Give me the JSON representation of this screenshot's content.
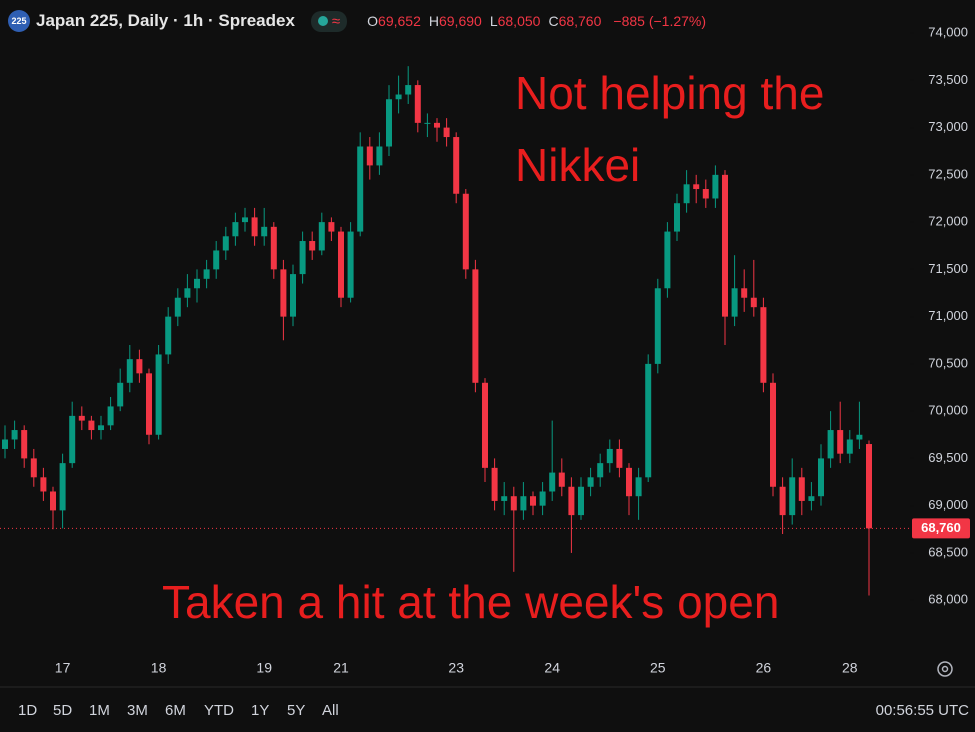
{
  "header": {
    "badge": "225",
    "symbol": "Japan 225, Daily · 1h · Spreadex",
    "status_icon": "≈",
    "ohlc": [
      {
        "key": "O",
        "value": "69,652"
      },
      {
        "key": "H",
        "value": "69,690"
      },
      {
        "key": "L",
        "value": "68,050"
      },
      {
        "key": "C",
        "value": "68,760"
      }
    ],
    "change": "−885 (−1.27%)"
  },
  "chart_data": {
    "type": "candlestick",
    "annotations": [
      [
        "Not helping the",
        "Nikkei"
      ],
      [
        "Taken a hit at the week's open"
      ]
    ],
    "categories": [
      null,
      null,
      null,
      null,
      null,
      null,
      "17",
      null,
      null,
      null,
      null,
      null,
      null,
      null,
      null,
      null,
      "18",
      null,
      null,
      null,
      null,
      null,
      null,
      null,
      null,
      null,
      null,
      "19",
      null,
      null,
      null,
      null,
      null,
      null,
      null,
      "21",
      null,
      null,
      null,
      null,
      null,
      null,
      null,
      null,
      null,
      null,
      null,
      "23",
      null,
      null,
      null,
      null,
      null,
      null,
      null,
      null,
      null,
      "24",
      null,
      null,
      null,
      null,
      null,
      null,
      null,
      null,
      null,
      null,
      "25",
      null,
      null,
      null,
      null,
      null,
      null,
      null,
      null,
      null,
      null,
      "26",
      null,
      null,
      null,
      null,
      null,
      null,
      null,
      null,
      "28",
      null,
      null
    ],
    "open": [
      69600,
      69700,
      69800,
      69500,
      69300,
      69150,
      68950,
      69450,
      69950,
      69900,
      69800,
      69850,
      70050,
      70300,
      70550,
      70400,
      69750,
      70600,
      71000,
      71200,
      71300,
      71400,
      71500,
      71700,
      71850,
      72000,
      72050,
      71850,
      71950,
      71500,
      71000,
      71450,
      71800,
      71700,
      72000,
      71900,
      71200,
      71900,
      72800,
      72600,
      72800,
      73300,
      73350,
      73450,
      73050,
      73050,
      73000,
      72900,
      72300,
      71500,
      70300,
      69400,
      69050,
      69100,
      68950,
      69100,
      69000,
      69150,
      69350,
      69200,
      68900,
      69200,
      69300,
      69450,
      69600,
      69400,
      69100,
      69300,
      70500,
      71300,
      71900,
      72200,
      72400,
      72350,
      72250,
      72500,
      71000,
      71300,
      71200,
      71100,
      70300,
      69200,
      68900,
      69300,
      69050,
      69100,
      69500,
      69800,
      69550,
      69700,
      69652
    ],
    "high": [
      69850,
      69900,
      69850,
      69600,
      69400,
      69200,
      69550,
      70100,
      70050,
      69950,
      69950,
      70150,
      70450,
      70700,
      70650,
      70450,
      70700,
      71100,
      71300,
      71450,
      71500,
      71600,
      71800,
      71950,
      72100,
      72150,
      72150,
      72150,
      72000,
      71600,
      71550,
      71900,
      71900,
      72100,
      72050,
      71950,
      72000,
      72950,
      72900,
      72950,
      73450,
      73550,
      73650,
      73500,
      73150,
      73100,
      73100,
      72950,
      72350,
      71600,
      70350,
      69500,
      69250,
      69200,
      69250,
      69150,
      69250,
      69900,
      69500,
      69300,
      69300,
      69400,
      69550,
      69700,
      69700,
      69450,
      69400,
      70600,
      71400,
      72000,
      72300,
      72550,
      72500,
      72450,
      72600,
      72550,
      71650,
      71500,
      71600,
      71200,
      70400,
      69300,
      69500,
      69400,
      69250,
      69650,
      70000,
      70100,
      69800,
      70100,
      69690
    ],
    "low": [
      69500,
      69600,
      69400,
      69200,
      69050,
      68750,
      68760,
      69400,
      69800,
      69700,
      69700,
      69800,
      70000,
      70200,
      70300,
      69650,
      69700,
      70500,
      70900,
      71100,
      71150,
      71300,
      71400,
      71600,
      71750,
      71900,
      71750,
      71750,
      71400,
      70750,
      70900,
      71350,
      71600,
      71650,
      71800,
      71100,
      71150,
      71850,
      72450,
      72500,
      72700,
      73150,
      73250,
      72950,
      72900,
      72850,
      72800,
      72200,
      71400,
      70200,
      69250,
      68950,
      68900,
      68300,
      68850,
      68900,
      68900,
      69050,
      69100,
      68500,
      68850,
      69100,
      69200,
      69350,
      69300,
      68900,
      68850,
      69250,
      70400,
      71200,
      71800,
      72100,
      72200,
      72150,
      72150,
      70700,
      70900,
      71050,
      71000,
      70200,
      69100,
      68700,
      68800,
      68900,
      68950,
      69000,
      69400,
      69450,
      69450,
      69600,
      68050
    ],
    "close": [
      69700,
      69800,
      69500,
      69300,
      69150,
      68950,
      69450,
      69950,
      69900,
      69800,
      69850,
      70050,
      70300,
      70550,
      70400,
      69750,
      70600,
      71000,
      71200,
      71300,
      71400,
      71500,
      71700,
      71850,
      72000,
      72050,
      71850,
      71950,
      71500,
      71000,
      71450,
      71800,
      71700,
      72000,
      71900,
      71200,
      71900,
      72800,
      72600,
      72800,
      73300,
      73350,
      73450,
      73050,
      73050,
      73000,
      72900,
      72300,
      71500,
      70300,
      69400,
      69050,
      69100,
      68950,
      69100,
      69000,
      69150,
      69350,
      69200,
      68900,
      69200,
      69300,
      69450,
      69600,
      69400,
      69100,
      69300,
      70500,
      71300,
      71900,
      72200,
      72400,
      72350,
      72250,
      72500,
      71000,
      71300,
      71200,
      71100,
      70300,
      69200,
      68900,
      69300,
      69050,
      69100,
      69500,
      69800,
      69550,
      69700,
      69750,
      68760
    ],
    "up_color": "#089981",
    "down_color": "#f23645",
    "ylim": [
      67420,
      74350
    ],
    "yticks": [
      {
        "value": 68000,
        "label": "68,000"
      },
      {
        "value": 68500,
        "label": "68,500"
      },
      {
        "value": 69000,
        "label": "69,000"
      },
      {
        "value": 69500,
        "label": "69,500"
      },
      {
        "value": 70000,
        "label": "70,000"
      },
      {
        "value": 70500,
        "label": "70,500"
      },
      {
        "value": 71000,
        "label": "71,000"
      },
      {
        "value": 71500,
        "label": "71,500"
      },
      {
        "value": 72000,
        "label": "72,000"
      },
      {
        "value": 72500,
        "label": "72,500"
      },
      {
        "value": 73000,
        "label": "73,000"
      },
      {
        "value": 73500,
        "label": "73,500"
      },
      {
        "value": 74000,
        "label": "74,000"
      }
    ],
    "last_price": {
      "value": 68760,
      "label": "68,760"
    }
  },
  "toolbar": {
    "ranges": [
      "1D",
      "5D",
      "1M",
      "3M",
      "6M",
      "YTD",
      "1Y",
      "5Y",
      "All"
    ],
    "clock": "00:56:55 UTC"
  }
}
